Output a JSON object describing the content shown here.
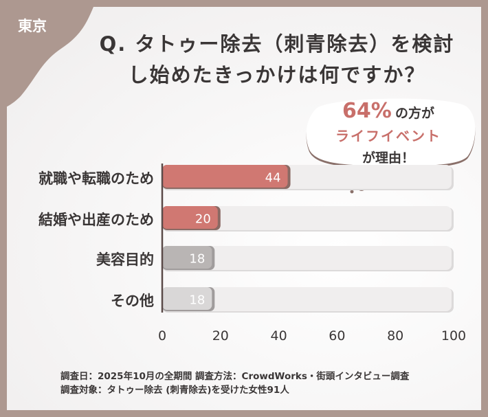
{
  "region_label": "東京",
  "title_line1": "Q. タトゥー除去（刺青除去）を検討",
  "title_line2": "し始めたきっかけは何ですか？",
  "callout": {
    "percent": "64%",
    "text1": "の方が",
    "text2": "ライフイベント",
    "text3": "が理由！"
  },
  "footnote_line1": "調査日：2025年10月の全期間  調査方法：CrowdWorks・街頭インタビュー調査",
  "footnote_line2": "調査対象：タトゥー除去 (刺青除去)を受けた女性91人",
  "colors": {
    "highlight": "#d07872",
    "gray": "#b9b5b4",
    "light_gray": "#d9d7d7",
    "track": "#efeded",
    "frame": "#ad9890"
  },
  "chart_data": {
    "type": "bar",
    "orientation": "horizontal",
    "categories": [
      "就職や転職のため",
      "結婚や出産のため",
      "美容目的",
      "その他"
    ],
    "values": [
      44,
      20,
      18,
      18
    ],
    "value_labels": [
      "44",
      "20",
      "18",
      "18"
    ],
    "bar_colors": [
      "#d07872",
      "#d07872",
      "#b9b5b4",
      "#d9d7d7"
    ],
    "xlim": [
      0,
      100
    ],
    "x_ticks": [
      "0",
      "20",
      "40",
      "60",
      "80",
      "100"
    ],
    "grid": false
  }
}
